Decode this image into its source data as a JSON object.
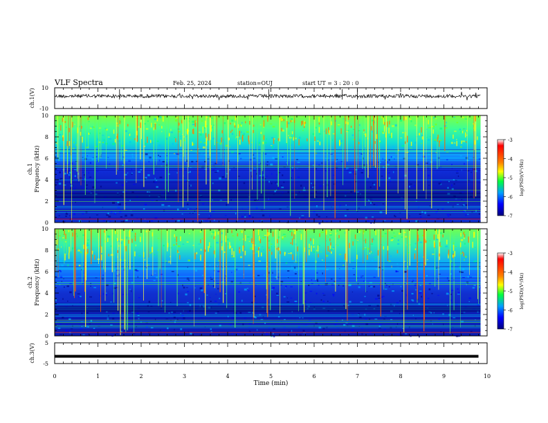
{
  "header": {
    "title": "VLF Spectra",
    "date": "Feb. 25, 2024",
    "station": "station=OUJ",
    "start": "start  UT =   3 : 20 : 0"
  },
  "colors": {
    "colormap": [
      "#00007f",
      "#0000ff",
      "#00bfff",
      "#00ff80",
      "#80ff00",
      "#ffff00",
      "#ff8000",
      "#ff0000",
      "#ffffff"
    ]
  },
  "chart_data": [
    {
      "type": "line",
      "panel": "ch1 waveform",
      "ylabel": "ch.1(V)",
      "ylim": [
        -10,
        10
      ],
      "yticks": [
        "10",
        "-10"
      ],
      "x": [
        0,
        1,
        2,
        3,
        4,
        5,
        6,
        7,
        8,
        9,
        9.8
      ],
      "y_level": 2
    },
    {
      "type": "heatmap",
      "panel": "ch1 spectrogram",
      "ylabel": "ch.1\nFrequency (kHz)",
      "ylim": [
        0,
        10
      ],
      "yticks": [
        "0",
        "2",
        "4",
        "6",
        "8",
        "10"
      ],
      "colorbar": {
        "label": "log(PSD)(V²/Hz)",
        "ticks": [
          "-3",
          "-4",
          "-5",
          "-6",
          "-7"
        ],
        "range": [
          -7,
          -3
        ]
      }
    },
    {
      "type": "heatmap",
      "panel": "ch2 spectrogram",
      "ylabel": "ch.2\nFrequency (kHz)",
      "ylim": [
        0,
        10
      ],
      "yticks": [
        "0",
        "2",
        "4",
        "6",
        "8",
        "10"
      ],
      "colorbar": {
        "label": "log(PSD)(V²/Hz)",
        "ticks": [
          "-3",
          "-4",
          "-5",
          "-6",
          "-7"
        ],
        "range": [
          -7,
          -3
        ]
      }
    },
    {
      "type": "line",
      "panel": "ch3",
      "ylabel": "ch.3(V)",
      "ylim": [
        -5,
        5
      ],
      "yticks": [
        "5",
        "-5"
      ],
      "x": [
        0,
        9.8
      ],
      "y": [
        -1.5,
        -1.5
      ]
    },
    {
      "type": "axis",
      "xlabel": "Time (min)",
      "xlim": [
        0,
        10
      ],
      "xticks": [
        "0",
        "1",
        "2",
        "3",
        "4",
        "5",
        "6",
        "7",
        "8",
        "9",
        "10"
      ]
    }
  ]
}
